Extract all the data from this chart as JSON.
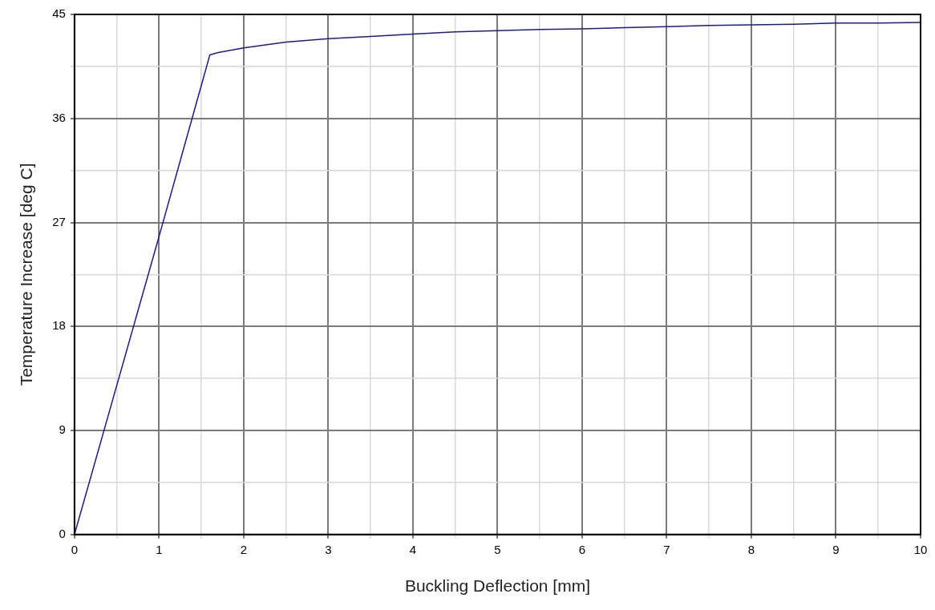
{
  "chart_data": {
    "type": "line",
    "xlabel": "Buckling Deflection [mm]",
    "ylabel": "Temperature Increase [deg C]",
    "series": [
      {
        "color": "#1c1c8c",
        "x": [
          0,
          1,
          1.6,
          1.7,
          2,
          2.5,
          3,
          3.5,
          4,
          4.5,
          5,
          5.5,
          6,
          6.5,
          7,
          7.5,
          8,
          8.5,
          9,
          9.5,
          10
        ],
        "values": [
          0,
          25.8,
          41.5,
          41.7,
          42.1,
          42.6,
          42.9,
          43.1,
          43.3,
          43.5,
          43.6,
          43.7,
          43.75,
          43.85,
          43.95,
          44.05,
          44.1,
          44.15,
          44.25,
          44.25,
          44.3
        ]
      }
    ],
    "xlim": [
      0,
      10
    ],
    "xticks": [
      0,
      {
        "value": 0.5,
        "label": null
      },
      1,
      {
        "value": 1.5,
        "label": null
      },
      2,
      {
        "value": 2.5,
        "label": null
      },
      3,
      {
        "value": 3.5,
        "label": null
      },
      4,
      {
        "value": 4.5,
        "label": null
      },
      5,
      {
        "value": 5.5,
        "label": null
      },
      6,
      {
        "value": 6.5,
        "label": null
      },
      7,
      {
        "value": 7.5,
        "label": null
      },
      8,
      {
        "value": 8.5,
        "label": null
      },
      9,
      {
        "value": 9.5,
        "label": null
      },
      10
    ],
    "ylim": [
      0,
      45
    ],
    "yticks": [
      0,
      {
        "value": 4.5,
        "label": null
      },
      9,
      {
        "value": 13.5,
        "label": null
      },
      18,
      {
        "value": 22.5,
        "label": null
      },
      27,
      {
        "value": 31.5,
        "label": null
      },
      36,
      {
        "value": 40.5,
        "label": null
      },
      45
    ],
    "grid": true,
    "legend": false,
    "marker": "none",
    "line_style": "solid"
  }
}
